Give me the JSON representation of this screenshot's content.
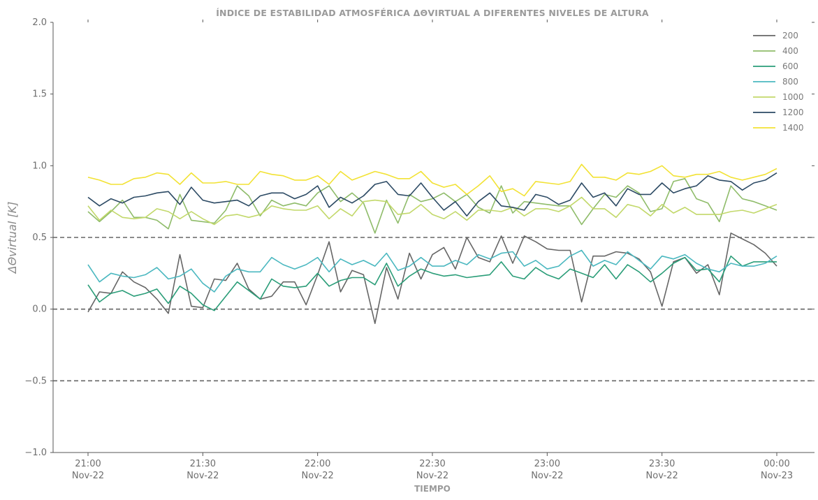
{
  "chart_data": {
    "type": "line",
    "title": "ÍNDICE DE ESTABILIDAD ATMOSFÉRICA ΔΘVIRTUAL A DIFERENTES NIVELES DE ALTURA",
    "xlabel": "TIEMPO",
    "ylabel": "ΔΘvirtual [K]",
    "ylim": [
      -1.0,
      2.0
    ],
    "yticks": [
      "2.0",
      "1.5",
      "1.0",
      "0.5",
      "0.0",
      "−0.5",
      "−1.0"
    ],
    "ytick_values": [
      2.0,
      1.5,
      1.0,
      0.5,
      0.0,
      -0.5,
      -1.0
    ],
    "xticks": [
      {
        "time": "21:00",
        "date": "Nov-22"
      },
      {
        "time": "21:30",
        "date": "Nov-22"
      },
      {
        "time": "22:00",
        "date": "Nov-22"
      },
      {
        "time": "22:30",
        "date": "Nov-22"
      },
      {
        "time": "23:00",
        "date": "Nov-22"
      },
      {
        "time": "23:30",
        "date": "Nov-22"
      },
      {
        "time": "00:00",
        "date": "Nov-23"
      }
    ],
    "x_start": "2022-11-22 21:00",
    "x_end": "2022-11-23 00:00",
    "step_minutes": 3,
    "reference_lines": [
      0.5,
      0.0,
      -0.5
    ],
    "grid": false,
    "legend_position": "top-right",
    "series": [
      {
        "name": "200",
        "color": "#666666",
        "values": [
          -0.02,
          0.12,
          0.11,
          0.26,
          0.19,
          0.15,
          0.07,
          -0.03,
          0.38,
          0.02,
          0.01,
          0.21,
          0.2,
          0.32,
          0.14,
          0.07,
          0.09,
          0.19,
          0.19,
          0.03,
          0.24,
          0.47,
          0.12,
          0.27,
          0.24,
          -0.1,
          0.29,
          0.07,
          0.39,
          0.21,
          0.38,
          0.43,
          0.28,
          0.5,
          0.36,
          0.33,
          0.51,
          0.32,
          0.51,
          0.47,
          0.42,
          0.41,
          0.41,
          0.05,
          0.37,
          0.37,
          0.4,
          0.39,
          0.35,
          0.26,
          0.02,
          0.33,
          0.36,
          0.25,
          0.31,
          0.1,
          0.53,
          0.49,
          0.45,
          0.39,
          0.3
        ]
      },
      {
        "name": "400",
        "color": "#8fbc6a",
        "values": [
          0.68,
          0.61,
          0.68,
          0.76,
          0.64,
          0.64,
          0.62,
          0.56,
          0.8,
          0.62,
          0.61,
          0.6,
          0.69,
          0.86,
          0.79,
          0.65,
          0.76,
          0.72,
          0.74,
          0.72,
          0.81,
          0.86,
          0.75,
          0.81,
          0.74,
          0.53,
          0.76,
          0.6,
          0.8,
          0.75,
          0.77,
          0.81,
          0.75,
          0.8,
          0.71,
          0.67,
          0.86,
          0.67,
          0.75,
          0.74,
          0.73,
          0.72,
          0.72,
          0.59,
          0.7,
          0.8,
          0.78,
          0.86,
          0.81,
          0.68,
          0.7,
          0.89,
          0.91,
          0.77,
          0.74,
          0.61,
          0.86,
          0.77,
          0.75,
          0.72,
          0.69
        ]
      },
      {
        "name": "600",
        "color": "#2a9d78",
        "values": [
          0.17,
          0.05,
          0.11,
          0.13,
          0.09,
          0.11,
          0.14,
          0.04,
          0.16,
          0.11,
          0.03,
          -0.01,
          0.09,
          0.19,
          0.13,
          0.07,
          0.21,
          0.16,
          0.15,
          0.16,
          0.25,
          0.16,
          0.2,
          0.22,
          0.22,
          0.17,
          0.32,
          0.16,
          0.23,
          0.28,
          0.25,
          0.23,
          0.24,
          0.22,
          0.23,
          0.24,
          0.33,
          0.23,
          0.21,
          0.29,
          0.24,
          0.21,
          0.28,
          0.25,
          0.22,
          0.31,
          0.21,
          0.31,
          0.26,
          0.19,
          0.25,
          0.32,
          0.36,
          0.27,
          0.28,
          0.19,
          0.37,
          0.3,
          0.33,
          0.33,
          0.33
        ]
      },
      {
        "name": "800",
        "color": "#4bb8c0",
        "values": [
          0.31,
          0.19,
          0.25,
          0.23,
          0.22,
          0.24,
          0.29,
          0.21,
          0.23,
          0.28,
          0.18,
          0.12,
          0.23,
          0.28,
          0.26,
          0.26,
          0.36,
          0.31,
          0.28,
          0.31,
          0.36,
          0.26,
          0.35,
          0.31,
          0.34,
          0.3,
          0.39,
          0.27,
          0.3,
          0.36,
          0.3,
          0.3,
          0.34,
          0.31,
          0.38,
          0.35,
          0.39,
          0.4,
          0.3,
          0.34,
          0.28,
          0.3,
          0.37,
          0.41,
          0.3,
          0.34,
          0.31,
          0.4,
          0.34,
          0.28,
          0.37,
          0.35,
          0.38,
          0.32,
          0.28,
          0.26,
          0.32,
          0.3,
          0.3,
          0.32,
          0.37
        ]
      },
      {
        "name": "1000",
        "color": "#c2d86a",
        "values": [
          0.72,
          0.62,
          0.69,
          0.64,
          0.63,
          0.64,
          0.7,
          0.68,
          0.63,
          0.68,
          0.63,
          0.59,
          0.65,
          0.66,
          0.64,
          0.66,
          0.72,
          0.7,
          0.69,
          0.69,
          0.72,
          0.63,
          0.7,
          0.65,
          0.75,
          0.76,
          0.75,
          0.66,
          0.67,
          0.73,
          0.66,
          0.63,
          0.68,
          0.62,
          0.69,
          0.69,
          0.68,
          0.71,
          0.65,
          0.7,
          0.7,
          0.68,
          0.72,
          0.78,
          0.7,
          0.7,
          0.64,
          0.73,
          0.71,
          0.65,
          0.73,
          0.67,
          0.71,
          0.66,
          0.66,
          0.66,
          0.68,
          0.69,
          0.67,
          0.7,
          0.73
        ]
      },
      {
        "name": "1200",
        "color": "#2c4a64",
        "values": [
          0.78,
          0.72,
          0.77,
          0.74,
          0.78,
          0.79,
          0.81,
          0.82,
          0.73,
          0.85,
          0.76,
          0.74,
          0.75,
          0.76,
          0.72,
          0.79,
          0.81,
          0.81,
          0.77,
          0.8,
          0.86,
          0.71,
          0.78,
          0.74,
          0.79,
          0.87,
          0.89,
          0.8,
          0.79,
          0.88,
          0.78,
          0.69,
          0.75,
          0.65,
          0.75,
          0.81,
          0.72,
          0.71,
          0.69,
          0.8,
          0.78,
          0.73,
          0.76,
          0.88,
          0.78,
          0.81,
          0.72,
          0.84,
          0.8,
          0.8,
          0.88,
          0.81,
          0.84,
          0.86,
          0.93,
          0.9,
          0.89,
          0.83,
          0.88,
          0.9,
          0.95
        ]
      },
      {
        "name": "1400",
        "color": "#f2e234",
        "values": [
          0.92,
          0.9,
          0.87,
          0.87,
          0.91,
          0.92,
          0.95,
          0.94,
          0.87,
          0.95,
          0.88,
          0.88,
          0.89,
          0.87,
          0.87,
          0.96,
          0.94,
          0.93,
          0.9,
          0.9,
          0.93,
          0.87,
          0.96,
          0.9,
          0.93,
          0.96,
          0.94,
          0.91,
          0.91,
          0.96,
          0.88,
          0.85,
          0.87,
          0.8,
          0.86,
          0.93,
          0.82,
          0.84,
          0.79,
          0.89,
          0.88,
          0.87,
          0.89,
          1.01,
          0.92,
          0.92,
          0.9,
          0.95,
          0.94,
          0.96,
          1.0,
          0.93,
          0.92,
          0.94,
          0.94,
          0.96,
          0.92,
          0.9,
          0.92,
          0.94,
          0.98
        ]
      }
    ]
  }
}
